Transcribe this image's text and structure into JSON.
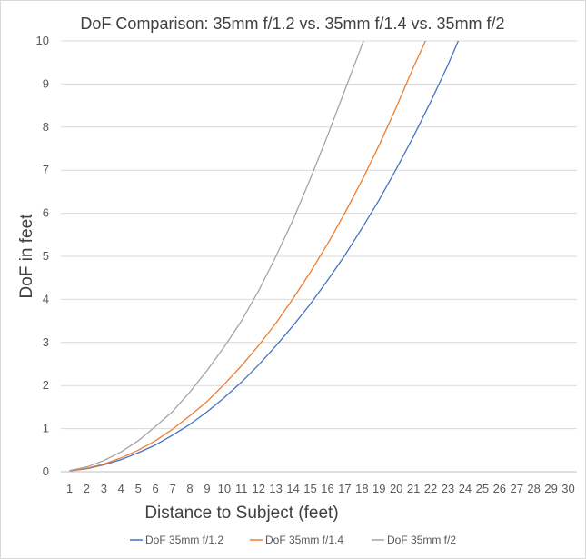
{
  "chart_data": {
    "type": "line",
    "title": "DoF Comparison: 35mm f/1.2 vs. 35mm f/1.4 vs. 35mm f/2",
    "xlabel": "Distance to Subject (feet)",
    "ylabel": "DoF in feet",
    "xlim": [
      1,
      30
    ],
    "ylim": [
      0,
      10
    ],
    "x_ticks": [
      1,
      2,
      3,
      4,
      5,
      6,
      7,
      8,
      9,
      10,
      11,
      12,
      13,
      14,
      15,
      16,
      17,
      18,
      19,
      20,
      21,
      22,
      23,
      24,
      25,
      26,
      27,
      28,
      29,
      30
    ],
    "y_ticks": [
      0,
      1,
      2,
      3,
      4,
      5,
      6,
      7,
      8,
      9,
      10
    ],
    "grid": "horizontal",
    "legend_position": "bottom",
    "series": [
      {
        "name": "DoF 35mm f/1.2",
        "color": "#4472c4",
        "x": [
          1,
          2,
          3,
          4,
          5,
          6,
          7,
          8,
          9,
          10,
          11,
          12,
          13,
          14,
          15,
          16,
          17,
          18,
          19,
          20,
          21,
          22,
          23,
          23.6
        ],
        "y": [
          0.02,
          0.07,
          0.16,
          0.28,
          0.44,
          0.62,
          0.85,
          1.1,
          1.39,
          1.72,
          2.08,
          2.48,
          2.92,
          3.39,
          3.89,
          4.44,
          5.02,
          5.65,
          6.31,
          7.03,
          7.78,
          8.59,
          9.44,
          10.0
        ]
      },
      {
        "name": "DoF 35mm f/1.4",
        "color": "#ed7d31",
        "x": [
          1,
          2,
          3,
          4,
          5,
          6,
          7,
          8,
          9,
          10,
          11,
          12,
          13,
          14,
          15,
          16,
          17,
          18,
          19,
          20,
          21,
          21.7
        ],
        "y": [
          0.02,
          0.08,
          0.18,
          0.32,
          0.5,
          0.72,
          0.99,
          1.3,
          1.63,
          2.03,
          2.46,
          2.93,
          3.45,
          4.02,
          4.63,
          5.29,
          6.0,
          6.76,
          7.58,
          8.46,
          9.39,
          10.0
        ]
      },
      {
        "name": "DoF 35mm f/2",
        "color": "#a5a5a5",
        "x": [
          1,
          2,
          3,
          4,
          5,
          6,
          7,
          8,
          9,
          10,
          11,
          12,
          13,
          14,
          15,
          16,
          17,
          18,
          18.1
        ],
        "y": [
          0.03,
          0.11,
          0.26,
          0.46,
          0.72,
          1.05,
          1.4,
          1.85,
          2.35,
          2.9,
          3.5,
          4.2,
          5.0,
          5.85,
          6.8,
          7.8,
          8.85,
          9.9,
          10.0
        ]
      }
    ]
  }
}
